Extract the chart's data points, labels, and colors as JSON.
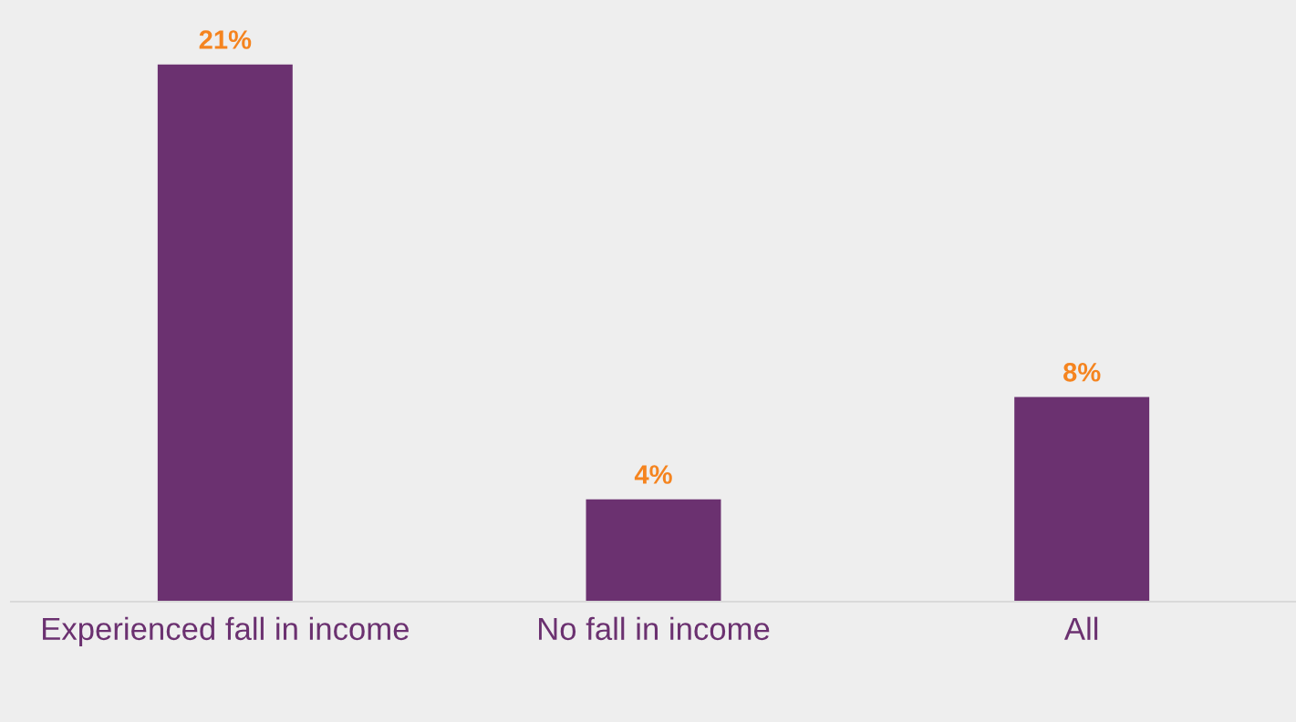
{
  "chart_data": {
    "type": "bar",
    "categories": [
      "Experienced fall in income",
      "No fall in income",
      "All"
    ],
    "values": [
      21,
      4,
      8
    ],
    "value_labels": [
      "21%",
      "4%",
      "8%"
    ],
    "color": "#6b3170",
    "grid": false,
    "legend": false
  }
}
